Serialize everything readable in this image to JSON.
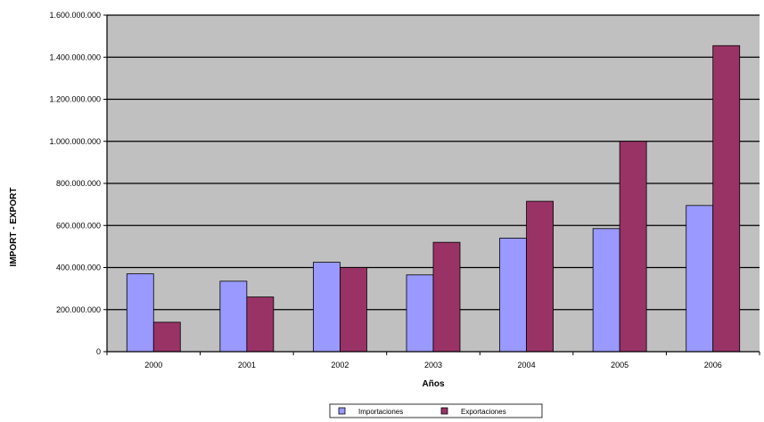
{
  "chart_data": {
    "type": "bar",
    "title": "",
    "xlabel": "Años",
    "ylabel": "IMPORT - EXPORT",
    "categories": [
      "2000",
      "2001",
      "2002",
      "2003",
      "2004",
      "2005",
      "2006"
    ],
    "series": [
      {
        "name": "Importaciones",
        "color": "#9999ff",
        "values": [
          370000000,
          335000000,
          425000000,
          365000000,
          540000000,
          585000000,
          695000000
        ]
      },
      {
        "name": "Exportaciones",
        "color": "#993366",
        "values": [
          140000000,
          260000000,
          400000000,
          520000000,
          715000000,
          1000000000,
          1455000000
        ]
      }
    ],
    "ylim": [
      0,
      1600000000
    ],
    "yticks": [
      0,
      200000000,
      400000000,
      600000000,
      800000000,
      1000000000,
      1200000000,
      1400000000,
      1600000000
    ],
    "ytick_labels": [
      "0",
      "200.000.000",
      "400.000.000",
      "600.000.000",
      "800.000.000",
      "1.000.000.000",
      "1.200.000.000",
      "1.400.000.000",
      "1.600.000.000"
    ],
    "grid": true,
    "plot_background": "#c0c0c0",
    "legend_position": "bottom"
  }
}
